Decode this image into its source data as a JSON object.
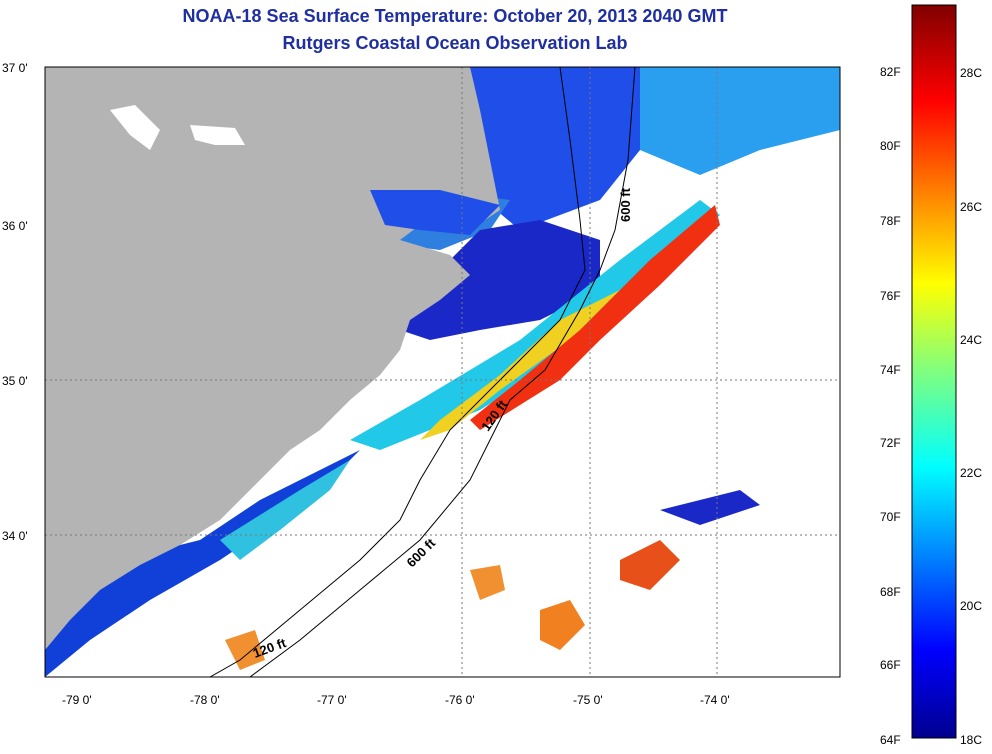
{
  "title": "NOAA-18 Sea Surface Temperature:  October 20, 2013 2040 GMT",
  "subtitle": "Rutgers Coastal Ocean Observation Lab",
  "lat_labels": [
    "37 0'",
    "36 0'",
    "35 0'",
    "34 0'"
  ],
  "lon_labels": [
    "-79 0'",
    "-78 0'",
    "-77 0'",
    "-76 0'",
    "-75 0'",
    "-74 0'"
  ],
  "isobath_labels": [
    "600 ft",
    "120 ft",
    "600 ft",
    "120 ft"
  ],
  "colorbar": {
    "fahrenheit": [
      "82F",
      "80F",
      "78F",
      "76F",
      "74F",
      "72F",
      "70F",
      "68F",
      "66F",
      "64F"
    ],
    "celsius": [
      "28C",
      "26C",
      "24C",
      "22C",
      "20C",
      "18C"
    ]
  },
  "colors": {
    "land": "#b4b4b4",
    "title": "#1f2f9f"
  }
}
